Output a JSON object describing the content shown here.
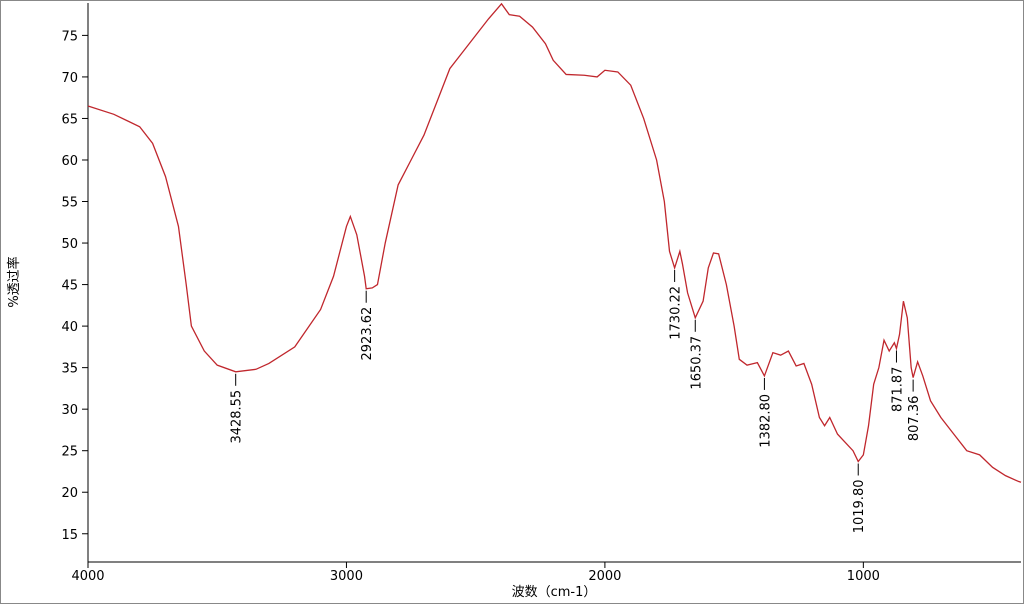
{
  "chart_data": {
    "type": "line",
    "x_label": "波数（cm-1）",
    "y_label": "%透过率",
    "xlim": [
      4000,
      390
    ],
    "ylim": [
      11.6,
      78.9
    ],
    "xticks": [
      4000,
      3000,
      2000,
      1000
    ],
    "yticks": [
      15,
      20,
      25,
      30,
      35,
      40,
      45,
      50,
      55,
      60,
      65,
      70,
      75
    ],
    "x": [
      4000,
      3900,
      3800,
      3750,
      3700,
      3650,
      3620,
      3600,
      3550,
      3500,
      3428.55,
      3350,
      3300,
      3200,
      3100,
      3050,
      3000,
      2985,
      2960,
      2930,
      2923.62,
      2900,
      2880,
      2850,
      2800,
      2750,
      2700,
      2650,
      2600,
      2550,
      2500,
      2450,
      2400,
      2370,
      2330,
      2280,
      2230,
      2200,
      2150,
      2080,
      2030,
      2000,
      1950,
      1900,
      1850,
      1800,
      1770,
      1750,
      1730.22,
      1710,
      1700,
      1680,
      1650.37,
      1620,
      1600,
      1580,
      1560,
      1530,
      1500,
      1480,
      1450,
      1410,
      1382.8,
      1350,
      1320,
      1290,
      1260,
      1230,
      1200,
      1170,
      1150,
      1130,
      1100,
      1070,
      1040,
      1019.8,
      1000,
      980,
      960,
      940,
      920,
      900,
      880,
      871.87,
      860,
      845,
      830,
      815,
      807.36,
      790,
      770,
      740,
      700,
      650,
      600,
      550,
      500,
      450,
      400,
      390
    ],
    "series": [
      {
        "color": "#c0272d",
        "values": [
          66.5,
          65.5,
          64,
          62,
          58,
          52,
          45,
          40,
          37,
          35.3,
          34.5,
          34.8,
          35.5,
          37.5,
          42,
          46,
          52,
          53.2,
          51,
          46,
          44.5,
          44.6,
          45,
          50,
          57,
          60,
          63,
          67,
          71,
          73,
          75,
          77,
          78.8,
          77.5,
          77.3,
          76,
          74,
          72,
          70.3,
          70.2,
          70,
          70.8,
          70.6,
          69,
          65,
          60,
          55,
          49,
          47,
          49,
          47.5,
          44,
          41,
          43,
          47,
          48.8,
          48.7,
          45,
          40,
          36,
          35.3,
          35.6,
          34,
          36.8,
          36.5,
          37,
          35.2,
          35.5,
          33,
          29,
          28,
          29,
          27,
          26,
          25,
          23.7,
          24.5,
          28,
          33,
          35,
          38.3,
          37,
          38,
          37.3,
          39,
          43,
          41,
          35,
          33.8,
          35.7,
          34,
          31,
          29,
          27,
          25,
          24.5,
          23,
          22,
          21.3,
          21.2
        ]
      }
    ],
    "annotations": [
      {
        "x": 3428.55,
        "y": 34.5,
        "label": "3428.55"
      },
      {
        "x": 2923.62,
        "y": 44.5,
        "label": "2923.62"
      },
      {
        "x": 1730.22,
        "y": 47,
        "label": "1730.22"
      },
      {
        "x": 1650.37,
        "y": 41,
        "label": "1650.37"
      },
      {
        "x": 1382.8,
        "y": 34,
        "label": "1382.80"
      },
      {
        "x": 1019.8,
        "y": 23.7,
        "label": "1019.80"
      },
      {
        "x": 871.87,
        "y": 37.3,
        "label": "871.87"
      },
      {
        "x": 807.36,
        "y": 33.8,
        "label": "807.36"
      }
    ]
  }
}
